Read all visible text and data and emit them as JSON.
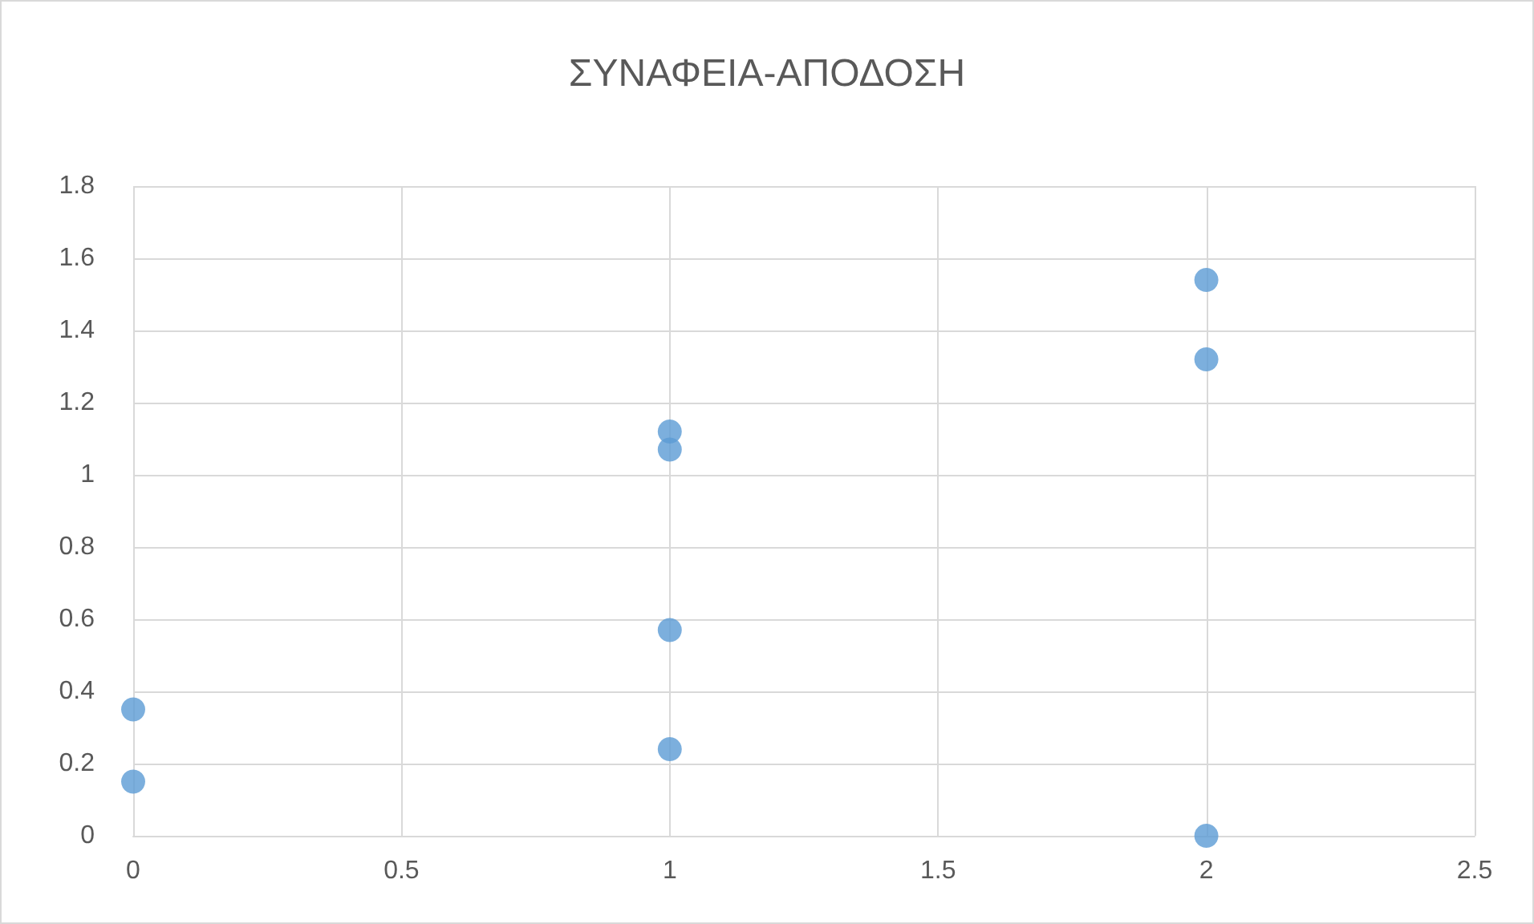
{
  "chart_data": {
    "type": "scatter",
    "title": "ΣΥΝΑΦΕΙΑ-ΑΠΟΔΟΣΗ",
    "x": [
      0,
      0,
      1,
      1,
      1,
      1,
      2,
      2,
      2
    ],
    "values": [
      0.35,
      0.15,
      1.12,
      1.07,
      0.57,
      0.24,
      1.54,
      1.32,
      0
    ],
    "color": "#5b9bd5",
    "marker": "circle",
    "xlim": [
      0,
      2.5
    ],
    "xticks": [
      0,
      0.5,
      1,
      1.5,
      2,
      2.5
    ],
    "ylim": [
      0,
      1.8
    ],
    "yticks": [
      0,
      0.2,
      0.4,
      0.6,
      0.8,
      1,
      1.2,
      1.4,
      1.6,
      1.8
    ],
    "grid": true
  }
}
